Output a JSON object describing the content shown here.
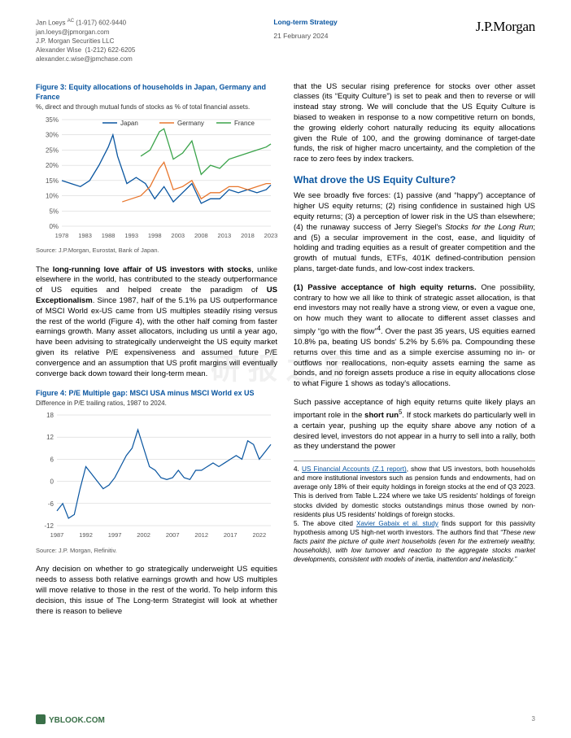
{
  "header": {
    "author1_name": "Jan Loeys",
    "author1_ac": "AC",
    "author1_phone": "(1-917) 602-9440",
    "author1_email": "jan.loeys@jpmorgan.com",
    "author1_firm": "J.P. Morgan Securities LLC",
    "author2_name": "Alexander Wise",
    "author2_phone": "(1-212) 622-6205",
    "author2_email": "alexander.c.wise@jpmchase.com",
    "strategy": "Long-term Strategy",
    "date": "21 February 2024",
    "brand": "J.P.Morgan"
  },
  "fig3": {
    "title": "Figure 3: Equity allocations of households in Japan, Germany and France",
    "subtitle": "%, direct and through mutual funds of stocks as % of total financial assets.",
    "source": "Source: J.P.Morgan, Eurostat, Bank of Japan.",
    "legend": {
      "japan": "Japan",
      "germany": "Germany",
      "france": "France"
    },
    "colors": {
      "japan": "#0955a0",
      "germany": "#e8772e",
      "france": "#3aa34a",
      "grid": "#cccccc",
      "axis": "#888888",
      "bg": "#ffffff"
    },
    "xlim": [
      1978,
      2023
    ],
    "xticks": [
      1978,
      1983,
      1988,
      1993,
      1998,
      2003,
      2008,
      2013,
      2018,
      2023
    ],
    "ylim": [
      0,
      35
    ],
    "yticks": [
      0,
      5,
      10,
      15,
      20,
      25,
      30,
      35
    ],
    "ytick_suffix": "%",
    "grid": true,
    "line_width": 1.3,
    "series": {
      "japan": [
        [
          1978,
          15
        ],
        [
          1980,
          14
        ],
        [
          1982,
          13
        ],
        [
          1984,
          15
        ],
        [
          1986,
          20
        ],
        [
          1988,
          26
        ],
        [
          1989,
          30
        ],
        [
          1990,
          23
        ],
        [
          1992,
          14
        ],
        [
          1994,
          16
        ],
        [
          1996,
          14
        ],
        [
          1998,
          9
        ],
        [
          2000,
          13
        ],
        [
          2002,
          8
        ],
        [
          2004,
          11
        ],
        [
          2006,
          14
        ],
        [
          2008,
          7.5
        ],
        [
          2010,
          9
        ],
        [
          2012,
          9
        ],
        [
          2014,
          12
        ],
        [
          2016,
          11
        ],
        [
          2018,
          12
        ],
        [
          2020,
          11
        ],
        [
          2022,
          12
        ],
        [
          2023,
          13.5
        ]
      ],
      "germany": [
        [
          1991,
          8
        ],
        [
          1993,
          9
        ],
        [
          1995,
          10
        ],
        [
          1997,
          13
        ],
        [
          1999,
          19
        ],
        [
          2000,
          21
        ],
        [
          2002,
          12
        ],
        [
          2004,
          13
        ],
        [
          2006,
          15
        ],
        [
          2008,
          9
        ],
        [
          2010,
          11
        ],
        [
          2012,
          11
        ],
        [
          2014,
          13
        ],
        [
          2016,
          13
        ],
        [
          2018,
          12
        ],
        [
          2020,
          13
        ],
        [
          2022,
          14
        ],
        [
          2023,
          14
        ]
      ],
      "france": [
        [
          1995,
          23
        ],
        [
          1997,
          25
        ],
        [
          1999,
          31
        ],
        [
          2000,
          32
        ],
        [
          2002,
          22
        ],
        [
          2004,
          24
        ],
        [
          2006,
          28
        ],
        [
          2008,
          17
        ],
        [
          2010,
          20
        ],
        [
          2012,
          19
        ],
        [
          2014,
          22
        ],
        [
          2016,
          23
        ],
        [
          2018,
          24
        ],
        [
          2020,
          25
        ],
        [
          2022,
          26
        ],
        [
          2023,
          27
        ]
      ]
    }
  },
  "para1_html": "The <b>long-running love affair of US investors with stocks</b>, unlike elsewhere in the world, has contributed to the steady outperformance of US equities and helped create the paradigm of <b>US Exceptionalism</b>. Since 1987, half of the 5.1% pa US outperformance of MSCI World ex-US came from US multiples steadily rising versus the rest of the world (Figure 4), with the other half coming from faster earnings growth. Many asset allocators, including us until a year ago, have been advising to strategically underweight the US equity market given its relative P/E expensiveness and assumed future P/E convergence and an assumption that US profit margins will eventually converge back down toward their long-term mean.",
  "fig4": {
    "title": "Figure 4: P/E Multiple gap: MSCI USA minus MSCI World ex US",
    "subtitle": "Difference in P/E trailing ratios, 1987 to 2024.",
    "source": "Source: J.P. Morgan, Refinitiv.",
    "color": "#0955a0",
    "grid_color": "#cccccc",
    "axis_color": "#888888",
    "xlim": [
      1987,
      2024
    ],
    "xticks": [
      1987,
      1992,
      1997,
      2002,
      2007,
      2012,
      2017,
      2022
    ],
    "ylim": [
      -12,
      18
    ],
    "yticks": [
      -12,
      -6,
      0,
      6,
      12,
      18
    ],
    "grid": true,
    "line_width": 1.2,
    "data": [
      [
        1987,
        -8
      ],
      [
        1988,
        -6
      ],
      [
        1989,
        -10
      ],
      [
        1990,
        -9
      ],
      [
        1991,
        -2
      ],
      [
        1992,
        4
      ],
      [
        1993,
        2
      ],
      [
        1994,
        0
      ],
      [
        1995,
        -2
      ],
      [
        1996,
        -1
      ],
      [
        1997,
        1
      ],
      [
        1998,
        4
      ],
      [
        1999,
        7
      ],
      [
        2000,
        9
      ],
      [
        2001,
        14
      ],
      [
        2002,
        9
      ],
      [
        2003,
        4
      ],
      [
        2004,
        3
      ],
      [
        2005,
        1
      ],
      [
        2006,
        0.5
      ],
      [
        2007,
        1
      ],
      [
        2008,
        3
      ],
      [
        2009,
        1
      ],
      [
        2010,
        0.5
      ],
      [
        2011,
        3
      ],
      [
        2012,
        3
      ],
      [
        2013,
        4
      ],
      [
        2014,
        5
      ],
      [
        2015,
        4
      ],
      [
        2016,
        5
      ],
      [
        2017,
        6
      ],
      [
        2018,
        7
      ],
      [
        2019,
        6
      ],
      [
        2020,
        11
      ],
      [
        2021,
        10
      ],
      [
        2022,
        6
      ],
      [
        2023,
        8
      ],
      [
        2024,
        10
      ]
    ]
  },
  "para2": "Any decision on whether to go strategically underweight US equities needs to assess both relative earnings growth and how US multiples will move relative to those in the rest of the world. To help inform this decision, this issue of The Long-term Strategist will look at whether there is reason to believe",
  "right_para1": "that the US secular rising preference for stocks over other asset classes (its “Equity Culture”) is set to peak and then to reverse or will instead stay strong. We will conclude that the US Equity Culture is biased to weaken in response to a now competitive return on bonds, the growing elderly cohort naturally reducing its equity allocations given the Rule of 100, and the growing dominance of target-date funds, the risk of higher macro uncertainty, and the completion of the race to zero fees by index trackers.",
  "section_heading": "What drove the US Equity Culture?",
  "right_para2_html": "We see broadly five forces: (1) passive (and “happy”) acceptance of higher US equity returns; (2) rising confidence in sustained high US equity returns; (3) a perception of lower risk in the US than elsewhere; (4) the runaway success of Jerry Siegel's <i>Stocks for the Long Run</i>; and (5) a secular improvement in the cost, ease, and liquidity of holding and trading equities as a result of greater competition and the growth of mutual funds, ETFs, 401K defined-contribution pension plans, target-date funds, and low-cost index trackers.",
  "right_para3_html": "<b>(1) Passive acceptance of high equity returns.</b> One possibility, contrary to how we all like to think of strategic asset allocation, is that end investors may not really have a strong view, or even a vague one, on how much they want to allocate to different asset classes and simply “go with the flow”<sup>4</sup>. Over the past 35 years, US equities earned 10.8% pa, beating US bonds' 5.2% by 5.6% pa. Compounding these returns over this time and as a simple exercise assuming no in- or outflows nor reallocations, non-equity assets earning the same as bonds, and no foreign assets produce a rise in equity allocations close to what Figure 1 shows as today's allocations.",
  "right_para4_html": "Such passive acceptance of high equity returns quite likely plays an important role in the <b>short run</b><sup>5</sup>. If stock markets do particularly well in a certain year, pushing up the equity share above any notion of a desired level, investors do not appear in a hurry to sell into a rally, both as they understand the power",
  "footnote4_html": "4. <a class='inline' href='#'>US Financial Accounts (Z.1 report)</a>, show that US investors, both households and more institutional investors such as pension funds and endowments, had on average only 18% of their equity holdings in foreign stocks at the end of Q3 2023. This is derived from Table L.224 where we take US residents' holdings of foreign stocks divided by domestic stocks outstandings minus those owned by non-residents plus US residents' holdings of foreign stocks.",
  "footnote5_html": "5. The above cited <a class='inline' href='#'>Xavier Gabaix et al. study</a> finds support for this passivity hypothesis among US high-net worth investors. The authors find that <i>“These new facts paint the picture of quite inert households (even for the extremely wealthy, households), with low turnover and reaction to the aggregate stocks market developments, consistent with models of inertia, inattention and inelasticity.”</i>",
  "watermark": "研报之家",
  "page_number": "3",
  "footer_brand": "YBLOOK.COM"
}
